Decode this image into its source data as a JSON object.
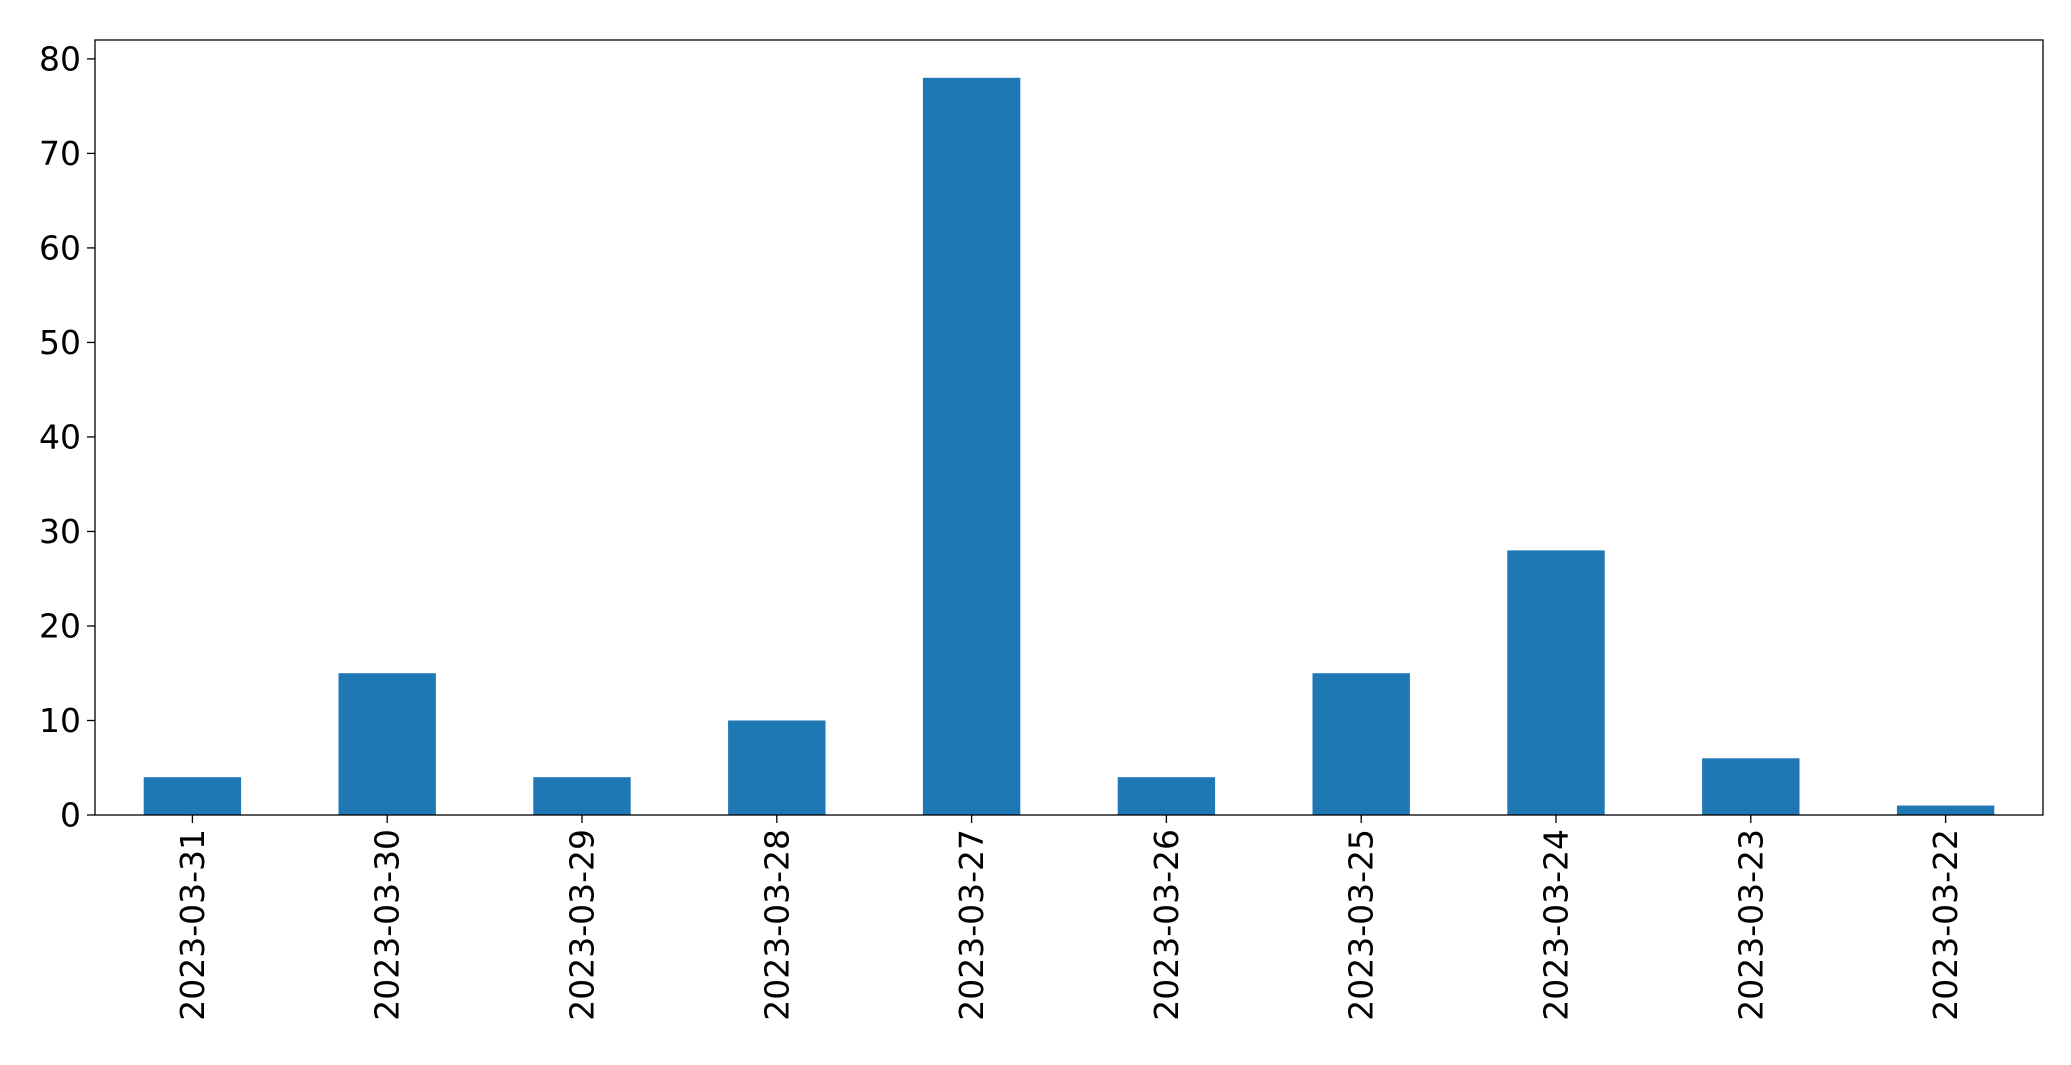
{
  "chart_data": {
    "type": "bar",
    "title": "",
    "xlabel": "",
    "ylabel": "",
    "categories": [
      "2023-03-31",
      "2023-03-30",
      "2023-03-29",
      "2023-03-28",
      "2023-03-27",
      "2023-03-26",
      "2023-03-25",
      "2023-03-24",
      "2023-03-23",
      "2023-03-22"
    ],
    "values": [
      4,
      15,
      4,
      10,
      78,
      4,
      15,
      28,
      6,
      1
    ],
    "ylim": [
      0,
      82
    ],
    "yticks": [
      0,
      10,
      20,
      30,
      40,
      50,
      60,
      70,
      80
    ],
    "bar_color": "#1f77b4",
    "grid": false,
    "legend": false
  }
}
